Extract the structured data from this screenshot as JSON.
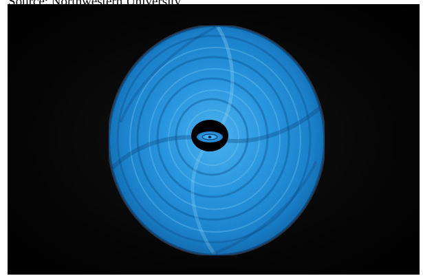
{
  "caption": {
    "text": "Source: Northwestern University"
  },
  "photo": {
    "subject_icon": "blue-spiral-disk",
    "colors": {
      "background": "#000000",
      "disk_light": "#63c6ff",
      "disk_mid": "#1f8fe0",
      "disk_dark": "#0b4f8c",
      "hole": "#000000"
    }
  }
}
